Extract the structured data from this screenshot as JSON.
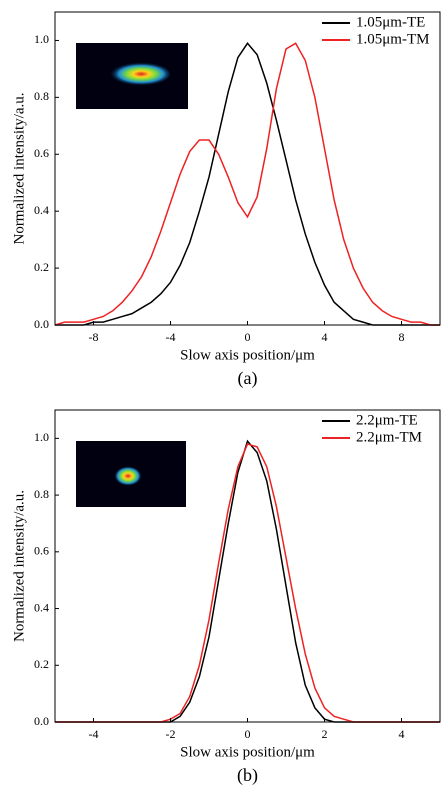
{
  "chart_data": [
    {
      "type": "line",
      "caption": "(a)",
      "xlabel": "Slow axis position/μm",
      "ylabel": "Normalized intensity/a.u.",
      "xlim": [
        -10,
        10
      ],
      "ylim": [
        0,
        1.1
      ],
      "xticks": [
        -8,
        -4,
        0,
        4,
        8
      ],
      "yticks": [
        {
          "value": 0,
          "label": "0.0"
        },
        {
          "value": 0.2,
          "label": "0.2"
        },
        {
          "value": 0.4,
          "label": "0.4"
        },
        {
          "value": 0.6,
          "label": "0.6"
        },
        {
          "value": 0.8,
          "label": "0.8"
        },
        {
          "value": 1,
          "label": "1.0"
        }
      ],
      "legend": "upper right",
      "x": [
        -10,
        -9.5,
        -9,
        -8.5,
        -8,
        -7.5,
        -7,
        -6.5,
        -6,
        -5.5,
        -5,
        -4.5,
        -4,
        -3.5,
        -3,
        -2.5,
        -2,
        -1.5,
        -1,
        -0.5,
        0,
        0.5,
        1,
        1.5,
        2,
        2.5,
        3,
        3.5,
        4,
        4.5,
        5,
        5.5,
        6,
        6.5,
        7,
        7.5,
        8,
        8.5,
        9,
        9.5,
        10
      ],
      "series": [
        {
          "name": "1.05μm-TE",
          "color": "#000000",
          "values": [
            0,
            0,
            0,
            0,
            0.01,
            0.01,
            0.02,
            0.03,
            0.04,
            0.06,
            0.08,
            0.11,
            0.15,
            0.21,
            0.29,
            0.4,
            0.52,
            0.67,
            0.82,
            0.94,
            0.99,
            0.95,
            0.85,
            0.72,
            0.58,
            0.44,
            0.32,
            0.22,
            0.14,
            0.08,
            0.05,
            0.02,
            0.01,
            0,
            0,
            0,
            0,
            0,
            0,
            0,
            0
          ]
        },
        {
          "name": "1.05μm-TM",
          "color": "#ee2222",
          "values": [
            0,
            0.01,
            0.01,
            0.01,
            0.02,
            0.03,
            0.05,
            0.08,
            0.12,
            0.17,
            0.24,
            0.33,
            0.43,
            0.53,
            0.61,
            0.65,
            0.65,
            0.6,
            0.52,
            0.43,
            0.38,
            0.45,
            0.62,
            0.83,
            0.97,
            0.99,
            0.93,
            0.8,
            0.62,
            0.44,
            0.3,
            0.2,
            0.13,
            0.08,
            0.05,
            0.03,
            0.02,
            0.01,
            0.01,
            0,
            0
          ]
        }
      ]
    },
    {
      "type": "line",
      "caption": "(b)",
      "xlabel": "Slow axis position/μm",
      "ylabel": "Normalized intensity/a.u.",
      "xlim": [
        -5,
        5
      ],
      "ylim": [
        0,
        1.1
      ],
      "xticks": [
        -4,
        -2,
        0,
        2,
        4
      ],
      "yticks": [
        {
          "value": 0,
          "label": "0.0"
        },
        {
          "value": 0.2,
          "label": "0.2"
        },
        {
          "value": 0.4,
          "label": "0.4"
        },
        {
          "value": 0.6,
          "label": "0.6"
        },
        {
          "value": 0.8,
          "label": "0.8"
        },
        {
          "value": 1,
          "label": "1.0"
        }
      ],
      "legend": "upper right",
      "x": [
        -5,
        -4.75,
        -4.5,
        -4.25,
        -4,
        -3.75,
        -3.5,
        -3.25,
        -3,
        -2.75,
        -2.5,
        -2.25,
        -2,
        -1.75,
        -1.5,
        -1.25,
        -1,
        -0.75,
        -0.5,
        -0.25,
        0,
        0.25,
        0.5,
        0.75,
        1,
        1.25,
        1.5,
        1.75,
        2,
        2.25,
        2.5,
        2.75,
        3,
        3.25,
        3.5,
        3.75,
        4,
        4.25,
        4.5,
        4.75,
        5
      ],
      "series": [
        {
          "name": "2.2μm-TE",
          "color": "#000000",
          "values": [
            0,
            0,
            0,
            0,
            0,
            0,
            0,
            0,
            0,
            0,
            0,
            0,
            0,
            0.02,
            0.07,
            0.16,
            0.3,
            0.5,
            0.7,
            0.88,
            0.99,
            0.95,
            0.85,
            0.68,
            0.48,
            0.28,
            0.13,
            0.05,
            0.01,
            0,
            0,
            0,
            0,
            0,
            0,
            0,
            0,
            0,
            0,
            0,
            0
          ]
        },
        {
          "name": "2.2μm-TM",
          "color": "#ee2222",
          "values": [
            0,
            0,
            0,
            0,
            0,
            0,
            0,
            0,
            0,
            0,
            0,
            0,
            0.01,
            0.03,
            0.09,
            0.2,
            0.36,
            0.56,
            0.75,
            0.9,
            0.98,
            0.97,
            0.9,
            0.76,
            0.58,
            0.4,
            0.24,
            0.12,
            0.05,
            0.02,
            0.01,
            0,
            0,
            0,
            0,
            0,
            0,
            0,
            0,
            0,
            0
          ]
        }
      ]
    }
  ]
}
